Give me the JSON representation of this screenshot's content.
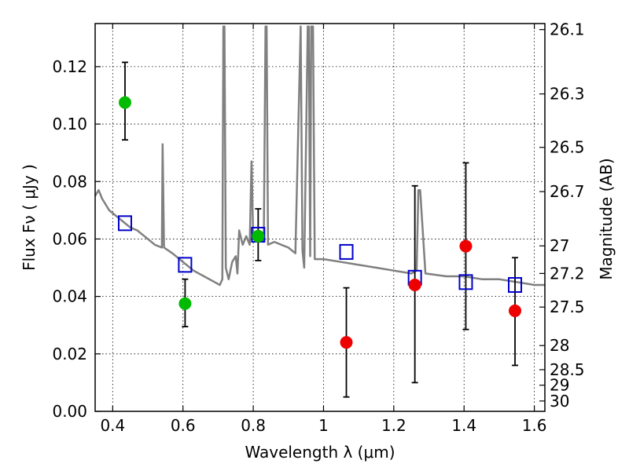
{
  "chart_data": {
    "type": "scatter",
    "title": "",
    "xlabel": "Wavelength  λ (μm)",
    "ylabel": "Flux  Fν  ( μJy )",
    "y2label": "Magnitude (AB)",
    "xlim": [
      0.35,
      1.63
    ],
    "ylim": [
      0.0,
      0.135
    ],
    "x_ticks": [
      0.4,
      0.6,
      0.8,
      1.0,
      1.2,
      1.4,
      1.6
    ],
    "x_tick_labels": [
      "0.4",
      "0.6",
      "0.8",
      "1",
      "1.2",
      "1.4",
      "1.6"
    ],
    "y_ticks": [
      0.0,
      0.02,
      0.04,
      0.06,
      0.08,
      0.1,
      0.12
    ],
    "y_tick_labels": [
      "0.00",
      "0.02",
      "0.04",
      "0.06",
      "0.08",
      "0.10",
      "0.12"
    ],
    "y2_ticks": [
      {
        "label": "26.1",
        "flux": 0.1329
      },
      {
        "label": "26.3",
        "flux": 0.1105
      },
      {
        "label": "26.5",
        "flux": 0.0919
      },
      {
        "label": "26.7",
        "flux": 0.0765
      },
      {
        "label": "27",
        "flux": 0.0576
      },
      {
        "label": "27.2",
        "flux": 0.048
      },
      {
        "label": "27.5",
        "flux": 0.0363
      },
      {
        "label": "28",
        "flux": 0.0229
      },
      {
        "label": "28.5",
        "flux": 0.0145
      },
      {
        "label": "29",
        "flux": 0.0091
      },
      {
        "label": "30",
        "flux": 0.0036
      }
    ],
    "grid": true,
    "colors": {
      "model": "#808080",
      "squares": "#0000cc",
      "green": "#00bb00",
      "red": "#ee0000",
      "errorbar": "#000000"
    },
    "model_spectrum": [
      [
        0.35,
        0.075
      ],
      [
        0.36,
        0.077
      ],
      [
        0.37,
        0.074
      ],
      [
        0.38,
        0.072
      ],
      [
        0.39,
        0.07
      ],
      [
        0.4,
        0.069
      ],
      [
        0.41,
        0.068
      ],
      [
        0.43,
        0.066
      ],
      [
        0.45,
        0.064
      ],
      [
        0.47,
        0.063
      ],
      [
        0.49,
        0.061
      ],
      [
        0.5,
        0.06
      ],
      [
        0.52,
        0.058
      ],
      [
        0.54,
        0.057
      ],
      [
        0.542,
        0.093
      ],
      [
        0.546,
        0.057
      ],
      [
        0.57,
        0.055
      ],
      [
        0.6,
        0.052
      ],
      [
        0.63,
        0.049
      ],
      [
        0.66,
        0.047
      ],
      [
        0.69,
        0.045
      ],
      [
        0.705,
        0.044
      ],
      [
        0.712,
        0.046
      ],
      [
        0.715,
        0.134
      ],
      [
        0.718,
        0.134
      ],
      [
        0.722,
        0.05
      ],
      [
        0.73,
        0.046
      ],
      [
        0.74,
        0.052
      ],
      [
        0.75,
        0.054
      ],
      [
        0.755,
        0.048
      ],
      [
        0.76,
        0.063
      ],
      [
        0.77,
        0.058
      ],
      [
        0.78,
        0.061
      ],
      [
        0.79,
        0.058
      ],
      [
        0.795,
        0.087
      ],
      [
        0.8,
        0.06
      ],
      [
        0.81,
        0.06
      ],
      [
        0.82,
        0.062
      ],
      [
        0.83,
        0.059
      ],
      [
        0.835,
        0.134
      ],
      [
        0.838,
        0.134
      ],
      [
        0.842,
        0.058
      ],
      [
        0.86,
        0.059
      ],
      [
        0.88,
        0.058
      ],
      [
        0.9,
        0.057
      ],
      [
        0.92,
        0.055
      ],
      [
        0.935,
        0.134
      ],
      [
        0.94,
        0.056
      ],
      [
        0.945,
        0.05
      ],
      [
        0.955,
        0.134
      ],
      [
        0.958,
        0.134
      ],
      [
        0.962,
        0.054
      ],
      [
        0.965,
        0.134
      ],
      [
        0.97,
        0.134
      ],
      [
        0.975,
        0.053
      ],
      [
        0.98,
        0.053
      ],
      [
        1.0,
        0.053
      ],
      [
        1.05,
        0.052
      ],
      [
        1.1,
        0.051
      ],
      [
        1.15,
        0.05
      ],
      [
        1.2,
        0.049
      ],
      [
        1.25,
        0.048
      ],
      [
        1.265,
        0.049
      ],
      [
        1.27,
        0.077
      ],
      [
        1.275,
        0.077
      ],
      [
        1.29,
        0.048
      ],
      [
        1.35,
        0.047
      ],
      [
        1.4,
        0.047
      ],
      [
        1.45,
        0.046
      ],
      [
        1.5,
        0.046
      ],
      [
        1.55,
        0.045
      ],
      [
        1.6,
        0.044
      ],
      [
        1.63,
        0.044
      ]
    ],
    "series": [
      {
        "marker": "square",
        "points": [
          {
            "x": 0.435,
            "y": 0.0655
          },
          {
            "x": 0.606,
            "y": 0.051
          },
          {
            "x": 0.814,
            "y": 0.0615
          },
          {
            "x": 1.065,
            "y": 0.0555
          },
          {
            "x": 1.26,
            "y": 0.0465
          },
          {
            "x": 1.405,
            "y": 0.045
          },
          {
            "x": 1.545,
            "y": 0.044
          }
        ]
      },
      {
        "marker": "circle",
        "color": "green",
        "points": [
          {
            "x": 0.435,
            "y": 0.1075,
            "err_lo": 0.0945,
            "err_hi": 0.1215
          },
          {
            "x": 0.606,
            "y": 0.0375,
            "err_lo": 0.0295,
            "err_hi": 0.046
          },
          {
            "x": 0.814,
            "y": 0.061,
            "err_lo": 0.0525,
            "err_hi": 0.0705
          }
        ]
      },
      {
        "marker": "circle",
        "color": "red",
        "points": [
          {
            "x": 1.065,
            "y": 0.024,
            "err_lo": 0.005,
            "err_hi": 0.043
          },
          {
            "x": 1.26,
            "y": 0.044,
            "err_lo": 0.01,
            "err_hi": 0.0785
          },
          {
            "x": 1.405,
            "y": 0.0575,
            "err_lo": 0.0285,
            "err_hi": 0.0865
          },
          {
            "x": 1.545,
            "y": 0.035,
            "err_lo": 0.016,
            "err_hi": 0.0535
          }
        ]
      }
    ]
  }
}
